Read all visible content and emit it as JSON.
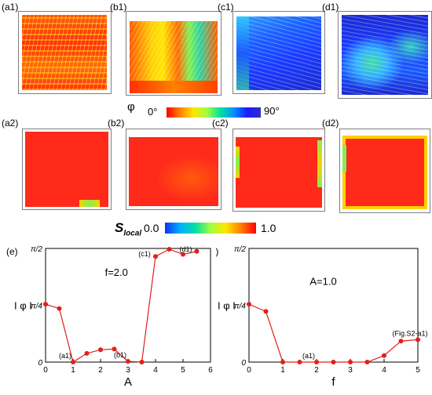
{
  "panels": {
    "top_labels": [
      "(a1)",
      "(b1)",
      "(c1)",
      "(d1)"
    ],
    "bottom_labels": [
      "(a2)",
      "(b2)",
      "(c2)",
      "(d2)"
    ]
  },
  "orientation_colorbar": {
    "symbol": "φ",
    "min_label": "0°",
    "max_label": "90°",
    "colors": [
      "#ff0000",
      "#ff8000",
      "#ffe600",
      "#a0ff40",
      "#00e0a0",
      "#0090ff",
      "#1a1aff",
      "#3030c0"
    ]
  },
  "order_colorbar": {
    "symbol": "S",
    "subscript": "local",
    "min_label": "0.0",
    "max_label": "1.0",
    "colors": [
      "#1030ff",
      "#00b0ff",
      "#00e0a0",
      "#a0ff40",
      "#ffe600",
      "#ff8000",
      "#ff0000"
    ]
  },
  "chart_data": [
    {
      "type": "line",
      "panel_label": "(e)",
      "annotation": "f=2.0",
      "xlabel": "A",
      "ylabel": "I φ I",
      "xlim": [
        0,
        6
      ],
      "xticks": [
        "0",
        "1",
        "2",
        "3",
        "4",
        "5",
        "6"
      ],
      "ylim": [
        0,
        1.5708
      ],
      "yticks": [
        "0",
        "π/4",
        "π/2"
      ],
      "x": [
        0,
        0.5,
        1,
        1.5,
        2,
        2.5,
        3,
        3.5,
        4,
        4.5,
        5,
        5.5
      ],
      "y": [
        0.8,
        0.74,
        0.0,
        0.12,
        0.17,
        0.18,
        0.01,
        0.0,
        1.46,
        1.56,
        1.49,
        1.53
      ],
      "point_labels": [
        {
          "text": "(a1)",
          "x": 1,
          "y": 0.0
        },
        {
          "text": "(b1)",
          "x": 3,
          "y": 0.01
        },
        {
          "text": "(c1)",
          "x": 4,
          "y": 1.46
        },
        {
          "text": "(d1)",
          "x": 5.5,
          "y": 1.53
        }
      ],
      "color": "#e0201a"
    },
    {
      "type": "line",
      "panel_label": "(f)",
      "annotation": "A=1.0",
      "xlabel": "f",
      "ylabel": "I φ I",
      "xlim": [
        0,
        5
      ],
      "xticks": [
        "0",
        "1",
        "2",
        "3",
        "4",
        "5"
      ],
      "ylim": [
        0,
        1.5708
      ],
      "yticks": [
        "0",
        "π/4",
        "π/2"
      ],
      "x": [
        0,
        0.5,
        1,
        1.5,
        2,
        2.5,
        3,
        3.5,
        4,
        4.5,
        5
      ],
      "y": [
        0.8,
        0.7,
        0.0,
        0.0,
        0.0,
        0.0,
        0.0,
        0.0,
        0.09,
        0.29,
        0.31
      ],
      "point_labels": [
        {
          "text": "(a1)",
          "x": 2,
          "y": 0.0
        },
        {
          "text": "(Fig.S2-a1)",
          "x": 5,
          "y": 0.31
        }
      ],
      "color": "#e0201a"
    }
  ]
}
